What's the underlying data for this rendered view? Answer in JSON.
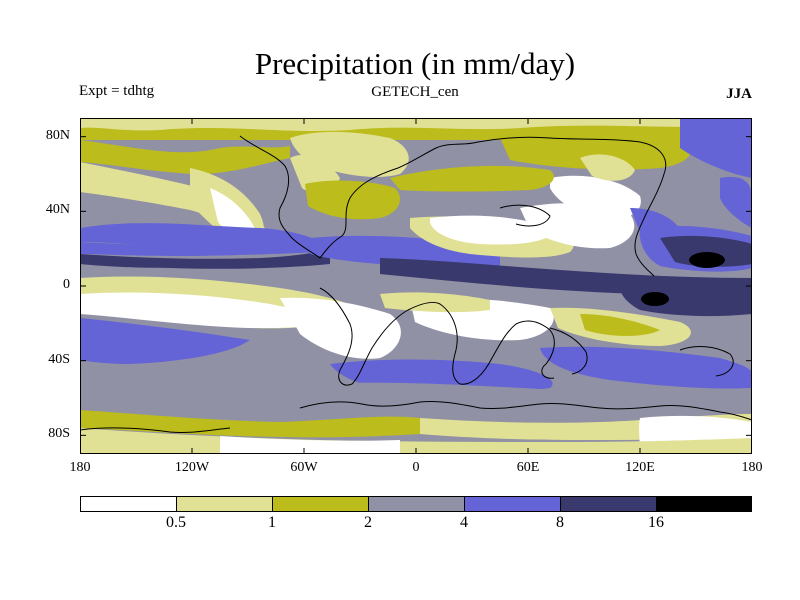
{
  "figure": {
    "title": "Precipitation (in mm/day)",
    "left_label": "Expt = tdhtg",
    "center_label": "GETECH_cen",
    "right_label": "JJA"
  },
  "map": {
    "projection": "cylindrical-equidistant",
    "lon_range": [
      -180,
      180
    ],
    "lat_range": [
      -90,
      90
    ],
    "lat_ticks": [
      {
        "value": 80,
        "label": "80N"
      },
      {
        "value": 40,
        "label": "40N"
      },
      {
        "value": 0,
        "label": "0"
      },
      {
        "value": -40,
        "label": "40S"
      },
      {
        "value": -80,
        "label": "80S"
      }
    ],
    "lon_ticks": [
      {
        "value": -180,
        "label": "180"
      },
      {
        "value": -120,
        "label": "120W"
      },
      {
        "value": -60,
        "label": "60W"
      },
      {
        "value": 0,
        "label": "0"
      },
      {
        "value": 60,
        "label": "60E"
      },
      {
        "value": 120,
        "label": "120E"
      },
      {
        "value": 180,
        "label": "180"
      }
    ]
  },
  "colorbar": {
    "colors": [
      "#ffffff",
      "#e1e196",
      "#bcbc1c",
      "#9191a5",
      "#6464d6",
      "#39396e",
      "#000000"
    ],
    "labels": [
      "0.5",
      "1",
      "2",
      "4",
      "8",
      "16"
    ]
  }
}
